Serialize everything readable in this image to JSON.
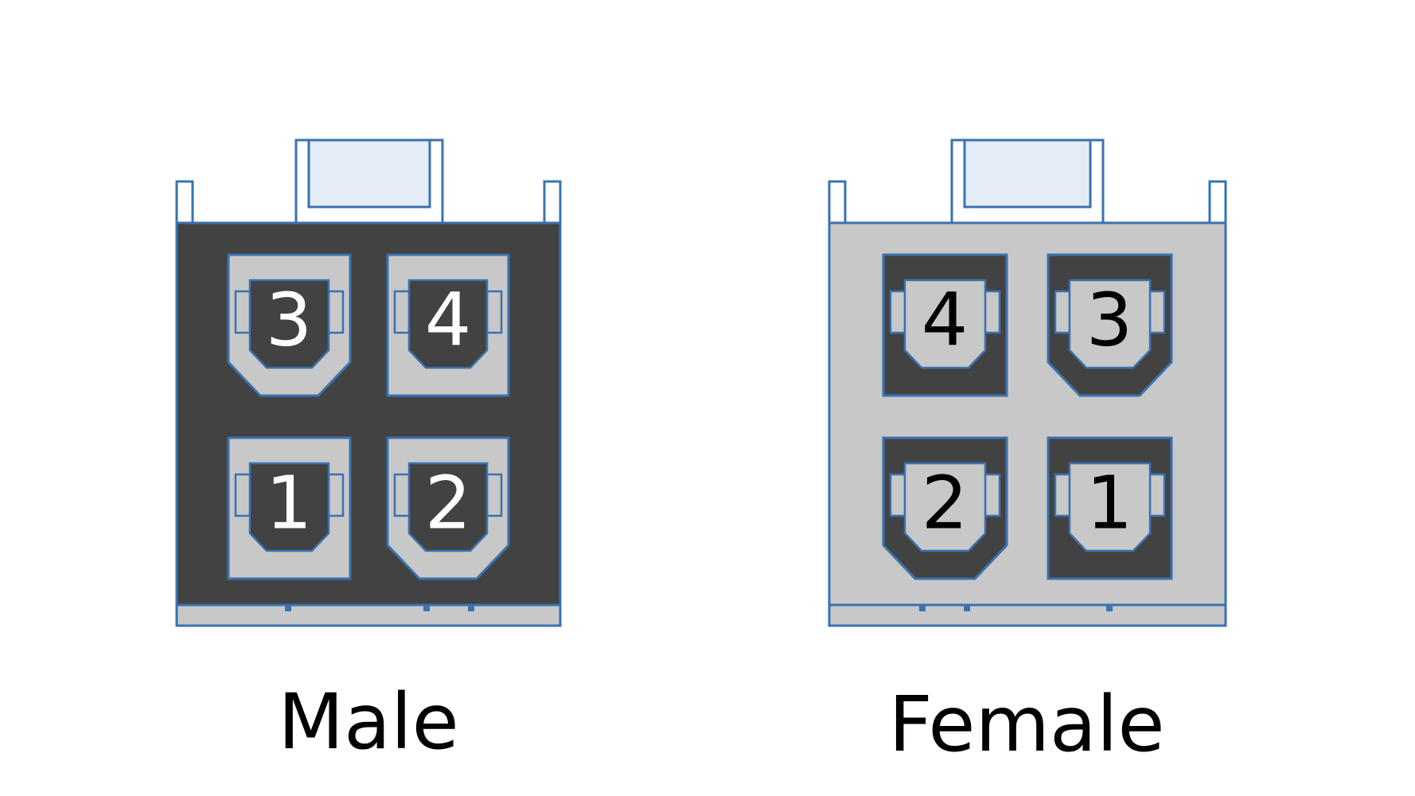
{
  "colors": {
    "outline": "#3a72b0",
    "dark": "#424242",
    "light": "#c8c8c8",
    "tab_fill": "#e4edf7",
    "text_black": "#000000",
    "text_white": "#ffffff"
  },
  "connectors": [
    {
      "caption": "Male",
      "body_color": "dark",
      "pin_labels": [
        "3",
        "4",
        "1",
        "2"
      ]
    },
    {
      "caption": "Female",
      "body_color": "light",
      "pin_labels": [
        "4",
        "3",
        "2",
        "1"
      ]
    }
  ]
}
